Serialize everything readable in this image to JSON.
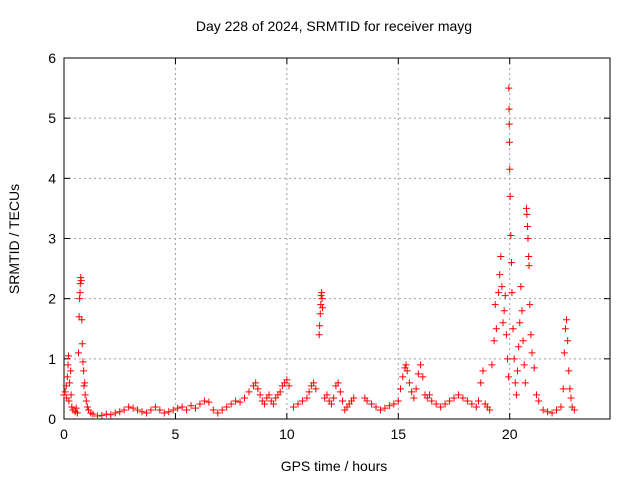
{
  "chart_data": {
    "type": "scatter",
    "title": "Day 228 of 2024, SRMTID for receiver mayg",
    "xlabel": "GPS time / hours",
    "ylabel": "SRMTID / TECUs",
    "xlim": [
      0,
      24.5
    ],
    "ylim": [
      0,
      6
    ],
    "xticks": [
      0,
      5,
      10,
      15,
      20
    ],
    "xtick_labels": [
      "0",
      "5",
      "10",
      "15",
      "20"
    ],
    "yticks": [
      0,
      1,
      2,
      3,
      4,
      5,
      6
    ],
    "ytick_labels": [
      "0",
      "1",
      "2",
      "3",
      "4",
      "5",
      "6"
    ],
    "grid": true,
    "legend": "none",
    "marker": "+",
    "series": [
      {
        "name": "SRMTID",
        "color": "#ff0000",
        "points": [
          [
            0.0,
            0.4
          ],
          [
            0.05,
            0.45
          ],
          [
            0.1,
            0.55
          ],
          [
            0.12,
            0.35
          ],
          [
            0.15,
            0.7
          ],
          [
            0.18,
            0.9
          ],
          [
            0.2,
            1.05
          ],
          [
            0.22,
            0.3
          ],
          [
            0.25,
            0.6
          ],
          [
            0.3,
            0.8
          ],
          [
            0.32,
            0.4
          ],
          [
            0.35,
            0.2
          ],
          [
            0.4,
            0.15
          ],
          [
            0.5,
            0.12
          ],
          [
            0.55,
            0.18
          ],
          [
            0.6,
            0.1
          ],
          [
            0.65,
            1.1
          ],
          [
            0.68,
            1.7
          ],
          [
            0.7,
            2.0
          ],
          [
            0.72,
            2.1
          ],
          [
            0.73,
            2.25
          ],
          [
            0.75,
            2.35
          ],
          [
            0.77,
            2.3
          ],
          [
            0.8,
            1.65
          ],
          [
            0.82,
            1.25
          ],
          [
            0.85,
            0.95
          ],
          [
            0.88,
            0.8
          ],
          [
            0.9,
            0.55
          ],
          [
            0.93,
            0.6
          ],
          [
            0.95,
            0.4
          ],
          [
            1.0,
            0.3
          ],
          [
            1.05,
            0.2
          ],
          [
            1.1,
            0.15
          ],
          [
            1.2,
            0.1
          ],
          [
            1.3,
            0.08
          ],
          [
            1.5,
            0.05
          ],
          [
            1.7,
            0.06
          ],
          [
            1.9,
            0.08
          ],
          [
            2.1,
            0.07
          ],
          [
            2.3,
            0.1
          ],
          [
            2.5,
            0.12
          ],
          [
            2.7,
            0.15
          ],
          [
            2.9,
            0.2
          ],
          [
            3.1,
            0.18
          ],
          [
            3.3,
            0.15
          ],
          [
            3.5,
            0.12
          ],
          [
            3.7,
            0.1
          ],
          [
            3.9,
            0.15
          ],
          [
            4.1,
            0.2
          ],
          [
            4.3,
            0.15
          ],
          [
            4.5,
            0.1
          ],
          [
            4.7,
            0.12
          ],
          [
            4.9,
            0.15
          ],
          [
            5.1,
            0.18
          ],
          [
            5.3,
            0.2
          ],
          [
            5.5,
            0.15
          ],
          [
            5.7,
            0.22
          ],
          [
            5.9,
            0.18
          ],
          [
            6.1,
            0.25
          ],
          [
            6.3,
            0.3
          ],
          [
            6.5,
            0.28
          ],
          [
            6.7,
            0.15
          ],
          [
            6.9,
            0.1
          ],
          [
            7.1,
            0.15
          ],
          [
            7.3,
            0.2
          ],
          [
            7.5,
            0.25
          ],
          [
            7.7,
            0.3
          ],
          [
            7.9,
            0.28
          ],
          [
            8.1,
            0.35
          ],
          [
            8.3,
            0.45
          ],
          [
            8.5,
            0.55
          ],
          [
            8.6,
            0.6
          ],
          [
            8.7,
            0.5
          ],
          [
            8.8,
            0.4
          ],
          [
            8.9,
            0.3
          ],
          [
            9.0,
            0.25
          ],
          [
            9.1,
            0.35
          ],
          [
            9.2,
            0.4
          ],
          [
            9.3,
            0.3
          ],
          [
            9.4,
            0.25
          ],
          [
            9.5,
            0.35
          ],
          [
            9.6,
            0.4
          ],
          [
            9.7,
            0.45
          ],
          [
            9.8,
            0.55
          ],
          [
            9.9,
            0.6
          ],
          [
            10.0,
            0.65
          ],
          [
            10.1,
            0.55
          ],
          [
            10.3,
            0.2
          ],
          [
            10.5,
            0.25
          ],
          [
            10.7,
            0.3
          ],
          [
            10.9,
            0.35
          ],
          [
            11.0,
            0.45
          ],
          [
            11.1,
            0.55
          ],
          [
            11.2,
            0.6
          ],
          [
            11.3,
            0.5
          ],
          [
            11.45,
            1.4
          ],
          [
            11.47,
            1.55
          ],
          [
            11.5,
            1.75
          ],
          [
            11.52,
            1.9
          ],
          [
            11.54,
            2.05
          ],
          [
            11.56,
            2.1
          ],
          [
            11.58,
            2.0
          ],
          [
            11.6,
            1.85
          ],
          [
            11.7,
            0.35
          ],
          [
            11.8,
            0.4
          ],
          [
            11.9,
            0.3
          ],
          [
            12.0,
            0.25
          ],
          [
            12.1,
            0.35
          ],
          [
            12.2,
            0.55
          ],
          [
            12.3,
            0.6
          ],
          [
            12.4,
            0.45
          ],
          [
            12.5,
            0.3
          ],
          [
            12.6,
            0.15
          ],
          [
            12.7,
            0.2
          ],
          [
            12.8,
            0.25
          ],
          [
            12.9,
            0.3
          ],
          [
            13.0,
            0.35
          ],
          [
            13.5,
            0.35
          ],
          [
            13.6,
            0.3
          ],
          [
            13.8,
            0.25
          ],
          [
            14.0,
            0.2
          ],
          [
            14.2,
            0.15
          ],
          [
            14.4,
            0.18
          ],
          [
            14.6,
            0.22
          ],
          [
            14.8,
            0.25
          ],
          [
            15.0,
            0.3
          ],
          [
            15.1,
            0.5
          ],
          [
            15.2,
            0.7
          ],
          [
            15.3,
            0.85
          ],
          [
            15.35,
            0.9
          ],
          [
            15.4,
            0.8
          ],
          [
            15.5,
            0.6
          ],
          [
            15.6,
            0.45
          ],
          [
            15.7,
            0.35
          ],
          [
            15.8,
            0.5
          ],
          [
            15.9,
            0.75
          ],
          [
            16.0,
            0.9
          ],
          [
            16.1,
            0.7
          ],
          [
            16.2,
            0.4
          ],
          [
            16.3,
            0.35
          ],
          [
            16.4,
            0.4
          ],
          [
            16.5,
            0.3
          ],
          [
            16.7,
            0.25
          ],
          [
            16.9,
            0.2
          ],
          [
            17.1,
            0.25
          ],
          [
            17.3,
            0.3
          ],
          [
            17.5,
            0.35
          ],
          [
            17.7,
            0.4
          ],
          [
            17.9,
            0.35
          ],
          [
            18.1,
            0.3
          ],
          [
            18.3,
            0.25
          ],
          [
            18.5,
            0.2
          ],
          [
            18.6,
            0.3
          ],
          [
            18.7,
            0.6
          ],
          [
            18.8,
            0.8
          ],
          [
            18.9,
            0.25
          ],
          [
            19.0,
            0.2
          ],
          [
            19.1,
            0.15
          ],
          [
            19.2,
            0.9
          ],
          [
            19.3,
            1.3
          ],
          [
            19.35,
            1.9
          ],
          [
            19.4,
            1.5
          ],
          [
            19.5,
            2.1
          ],
          [
            19.55,
            2.4
          ],
          [
            19.6,
            2.7
          ],
          [
            19.65,
            2.2
          ],
          [
            19.7,
            1.6
          ],
          [
            19.75,
            1.8
          ],
          [
            19.8,
            2.05
          ],
          [
            19.85,
            1.4
          ],
          [
            19.9,
            1.0
          ],
          [
            19.95,
            0.7
          ],
          [
            19.96,
            5.5
          ],
          [
            19.97,
            5.15
          ],
          [
            19.98,
            4.9
          ],
          [
            19.99,
            4.6
          ],
          [
            20.0,
            4.15
          ],
          [
            20.02,
            3.7
          ],
          [
            20.05,
            3.05
          ],
          [
            20.08,
            2.6
          ],
          [
            20.1,
            2.1
          ],
          [
            20.15,
            1.5
          ],
          [
            20.2,
            1.0
          ],
          [
            20.25,
            0.6
          ],
          [
            20.3,
            0.4
          ],
          [
            20.35,
            0.8
          ],
          [
            20.4,
            1.2
          ],
          [
            20.45,
            1.6
          ],
          [
            20.5,
            2.2
          ],
          [
            20.55,
            1.8
          ],
          [
            20.6,
            1.3
          ],
          [
            20.65,
            0.9
          ],
          [
            20.7,
            0.6
          ],
          [
            20.75,
            3.5
          ],
          [
            20.77,
            3.4
          ],
          [
            20.8,
            3.2
          ],
          [
            20.82,
            3.0
          ],
          [
            20.85,
            2.7
          ],
          [
            20.87,
            2.55
          ],
          [
            20.9,
            1.9
          ],
          [
            20.95,
            1.4
          ],
          [
            21.0,
            1.1
          ],
          [
            21.1,
            0.85
          ],
          [
            21.2,
            0.4
          ],
          [
            21.3,
            0.3
          ],
          [
            21.5,
            0.15
          ],
          [
            21.7,
            0.12
          ],
          [
            21.9,
            0.1
          ],
          [
            22.1,
            0.15
          ],
          [
            22.3,
            0.2
          ],
          [
            22.4,
            0.5
          ],
          [
            22.45,
            1.1
          ],
          [
            22.5,
            1.5
          ],
          [
            22.55,
            1.65
          ],
          [
            22.6,
            1.3
          ],
          [
            22.65,
            0.8
          ],
          [
            22.7,
            0.5
          ],
          [
            22.75,
            0.35
          ],
          [
            22.8,
            0.2
          ],
          [
            22.9,
            0.15
          ]
        ]
      }
    ]
  }
}
